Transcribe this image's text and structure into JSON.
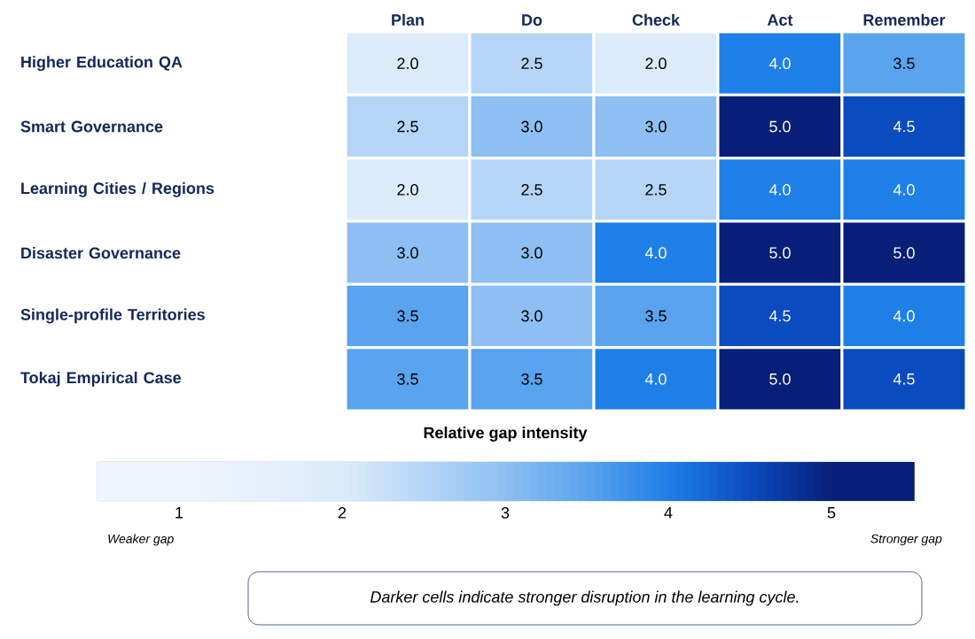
{
  "chart_data": {
    "type": "heatmap",
    "categories": [
      "Plan",
      "Do",
      "Check",
      "Act",
      "Remember"
    ],
    "y_categories": [
      "Higher Education QA",
      "Smart Governance",
      "Learning Cities / Regions",
      "Disaster Governance",
      "Single-profile Territories",
      "Tokaj Empirical Case"
    ],
    "cells": [
      [
        2.0,
        2.5,
        2.0,
        4.0,
        3.5
      ],
      [
        2.5,
        3.0,
        3.0,
        5.0,
        4.5
      ],
      [
        2.0,
        2.5,
        2.5,
        4.0,
        4.0
      ],
      [
        3.0,
        3.0,
        4.0,
        5.0,
        5.0
      ],
      [
        3.5,
        3.0,
        3.5,
        4.5,
        4.0
      ],
      [
        3.5,
        3.5,
        4.0,
        5.0,
        4.5
      ]
    ],
    "cell_labels": [
      [
        "2.0",
        "2.5",
        "2.0",
        "4.0",
        "3.5"
      ],
      [
        "2.5",
        "3.0",
        "3.0",
        "5.0",
        "4.5"
      ],
      [
        "2.0",
        "2.5",
        "2.5",
        "4.0",
        "4.0"
      ],
      [
        "3.0",
        "3.0",
        "4.0",
        "5.0",
        "5.0"
      ],
      [
        "3.5",
        "3.0",
        "3.5",
        "4.5",
        "4.0"
      ],
      [
        "3.5",
        "3.5",
        "4.0",
        "5.0",
        "4.5"
      ]
    ],
    "clim": [
      0.5,
      5.5
    ],
    "cticks": [
      1,
      2,
      3,
      4,
      5
    ],
    "clabel": "Relative gap intensity",
    "annotations": [
      "Weaker gap",
      "Stronger gap",
      "Darker cells indicate stronger disruption in the learning cycle."
    ]
  }
}
